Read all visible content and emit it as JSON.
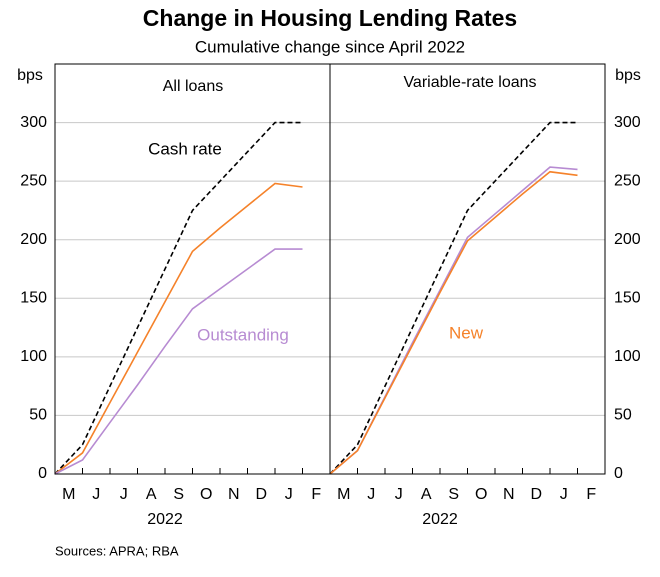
{
  "title": "Change in Housing Lending Rates",
  "subtitle": "Cumulative change since April 2022",
  "source": "Sources: APRA; RBA",
  "chart_data": [
    {
      "type": "line",
      "title": "All loans",
      "ylabel": "bps",
      "xlabel": "2022",
      "axis_side": "left",
      "categories": [
        "M",
        "J",
        "J",
        "A",
        "S",
        "O",
        "N",
        "D",
        "J",
        "F"
      ],
      "ylim": [
        0,
        350
      ],
      "yticks": [
        0,
        50,
        100,
        150,
        200,
        250,
        300
      ],
      "grid": true,
      "series": [
        {
          "name": "Cash rate",
          "color": "#000000",
          "dashed": true,
          "values": [
            0,
            25,
            75,
            125,
            175,
            225,
            250,
            275,
            300,
            300
          ]
        },
        {
          "color": "#f5822a",
          "values": [
            0,
            18,
            61,
            104,
            147,
            190,
            210,
            229,
            248,
            245
          ]
        },
        {
          "name": "Outstanding",
          "color": "#b78bd2",
          "values": [
            0,
            12,
            44,
            76,
            109,
            141,
            158,
            175,
            192,
            192
          ]
        }
      ]
    },
    {
      "type": "line",
      "title": "Variable-rate loans",
      "ylabel": "bps",
      "xlabel": "2022",
      "axis_side": "right",
      "categories": [
        "M",
        "J",
        "J",
        "A",
        "S",
        "O",
        "N",
        "D",
        "J",
        "F"
      ],
      "ylim": [
        0,
        350
      ],
      "yticks": [
        0,
        50,
        100,
        150,
        200,
        250,
        300
      ],
      "grid": true,
      "series": [
        {
          "color": "#000000",
          "dashed": true,
          "values": [
            0,
            25,
            75,
            125,
            175,
            225,
            250,
            275,
            300,
            300
          ]
        },
        {
          "color": "#b78bd2",
          "values": [
            0,
            20,
            66,
            112,
            157,
            202,
            222,
            242,
            262,
            260
          ]
        },
        {
          "name": "New",
          "color": "#f5822a",
          "values": [
            0,
            20,
            65,
            110,
            155,
            199,
            219,
            239,
            258,
            255
          ]
        }
      ]
    }
  ]
}
